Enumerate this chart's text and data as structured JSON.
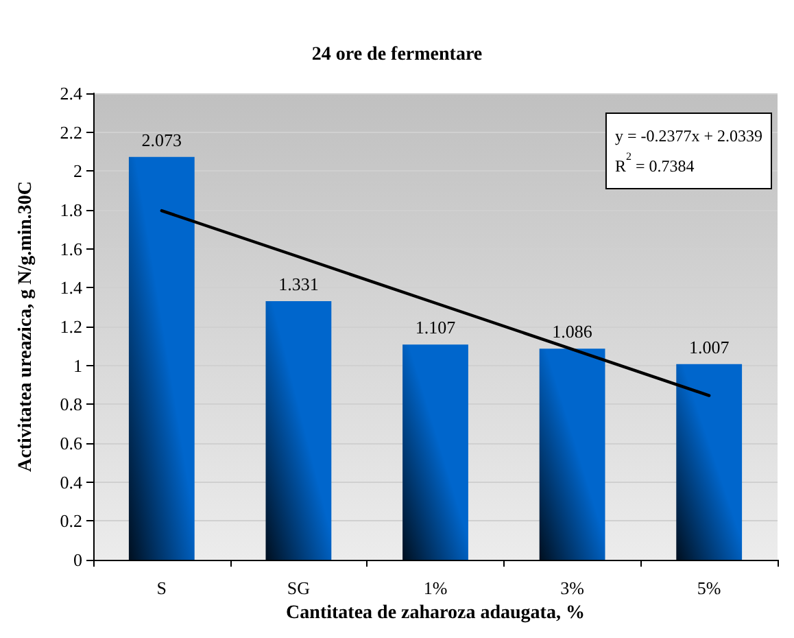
{
  "chart_data": {
    "type": "bar",
    "title": "24 ore de fermentare",
    "xlabel": "Cantitatea de zaharoza adaugata, %",
    "ylabel": "Activitatea ureazica, g N/g.min.30C",
    "categories": [
      "S",
      "SG",
      "1%",
      "3%",
      "5%"
    ],
    "series": [
      {
        "color": "#0066cc",
        "values": [
          2.073,
          1.331,
          1.107,
          1.086,
          1.007
        ],
        "data_labels": true
      },
      {
        "type": "line",
        "color": "#000000",
        "x": [
          "S",
          "SG",
          "1%",
          "3%",
          "5%"
        ],
        "values": [
          1.796,
          1.559,
          1.321,
          1.083,
          0.845
        ],
        "marker": "none",
        "line_style": "solid"
      }
    ],
    "annotations": [
      "y = -0.2377x + 2.0339",
      "R$^{2}$ = 0.7384"
    ],
    "ylim": [
      0,
      2.4
    ],
    "yticks": [
      0,
      0.2,
      0.4,
      0.6,
      0.8,
      1,
      1.2,
      1.4,
      1.6,
      1.8,
      2,
      2.2,
      2.4
    ],
    "grid": "y"
  }
}
